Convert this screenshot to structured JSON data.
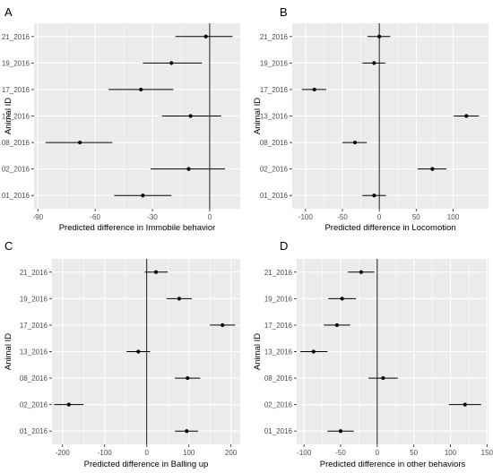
{
  "chart_data": [
    {
      "type": "scatter",
      "panel_label": "A",
      "xlabel": "Predicted difference in Immobile behavior",
      "ylabel": "Animal ID",
      "categories": [
        "01_2016",
        "02_2016",
        "08_2016",
        "13_2016",
        "17_2016",
        "19_2016",
        "21_2016"
      ],
      "estimates": [
        -35,
        -11,
        -68,
        -10,
        -36,
        -20,
        -2
      ],
      "ci_low": [
        -50,
        -31,
        -86,
        -25,
        -53,
        -35,
        -18
      ],
      "ci_high": [
        -20,
        8,
        -51,
        6,
        -19,
        -4,
        12
      ],
      "xlim": [
        -92,
        16
      ],
      "xticks": [
        -90,
        -60,
        -30,
        0
      ],
      "reference_line": 0,
      "grid": true,
      "marker_color": "#000000",
      "background_color": "#EBEBEB",
      "grid_color": "#FFFFFF"
    },
    {
      "type": "scatter",
      "panel_label": "B",
      "xlabel": "Predicted difference in Locomotion",
      "ylabel": "Animal ID",
      "categories": [
        "01_2016",
        "02_2016",
        "08_2016",
        "13_2016",
        "17_2016",
        "19_2016",
        "21_2016"
      ],
      "estimates": [
        -7,
        72,
        -33,
        118,
        -88,
        -7,
        0
      ],
      "ci_low": [
        -23,
        52,
        -50,
        101,
        -105,
        -23,
        -16
      ],
      "ci_high": [
        9,
        91,
        -17,
        135,
        -72,
        8,
        15
      ],
      "xlim": [
        -118,
        148
      ],
      "xticks": [
        -100,
        -50,
        0,
        50,
        100
      ],
      "reference_line": 0,
      "grid": true,
      "marker_color": "#000000",
      "background_color": "#EBEBEB",
      "grid_color": "#FFFFFF"
    },
    {
      "type": "scatter",
      "panel_label": "C",
      "xlabel": "Predicted difference in Balling up",
      "ylabel": "Animal ID",
      "categories": [
        "01_2016",
        "02_2016",
        "08_2016",
        "13_2016",
        "17_2016",
        "19_2016",
        "21_2016"
      ],
      "estimates": [
        95,
        -185,
        97,
        -20,
        180,
        77,
        22
      ],
      "ci_low": [
        67,
        -220,
        67,
        -48,
        150,
        47,
        -5
      ],
      "ci_high": [
        122,
        -150,
        127,
        8,
        210,
        107,
        50
      ],
      "xlim": [
        -225,
        222
      ],
      "xticks": [
        -200,
        -100,
        0,
        100,
        200
      ],
      "reference_line": 0,
      "grid": true,
      "marker_color": "#000000",
      "background_color": "#EBEBEB",
      "grid_color": "#FFFFFF"
    },
    {
      "type": "scatter",
      "panel_label": "D",
      "xlabel": "Predicted difference in other behaviors",
      "ylabel": "Animal ID",
      "categories": [
        "01_2016",
        "02_2016",
        "08_2016",
        "13_2016",
        "17_2016",
        "19_2016",
        "21_2016"
      ],
      "estimates": [
        -50,
        120,
        8,
        -87,
        -55,
        -48,
        -22
      ],
      "ci_low": [
        -68,
        98,
        -12,
        -105,
        -73,
        -67,
        -40
      ],
      "ci_high": [
        -32,
        142,
        28,
        -68,
        -37,
        -29,
        -4
      ],
      "xlim": [
        -110,
        152
      ],
      "xticks": [
        -100,
        -50,
        0,
        50,
        100,
        150
      ],
      "reference_line": 0,
      "grid": true,
      "marker_color": "#000000",
      "background_color": "#EBEBEB",
      "grid_color": "#FFFFFF"
    }
  ]
}
